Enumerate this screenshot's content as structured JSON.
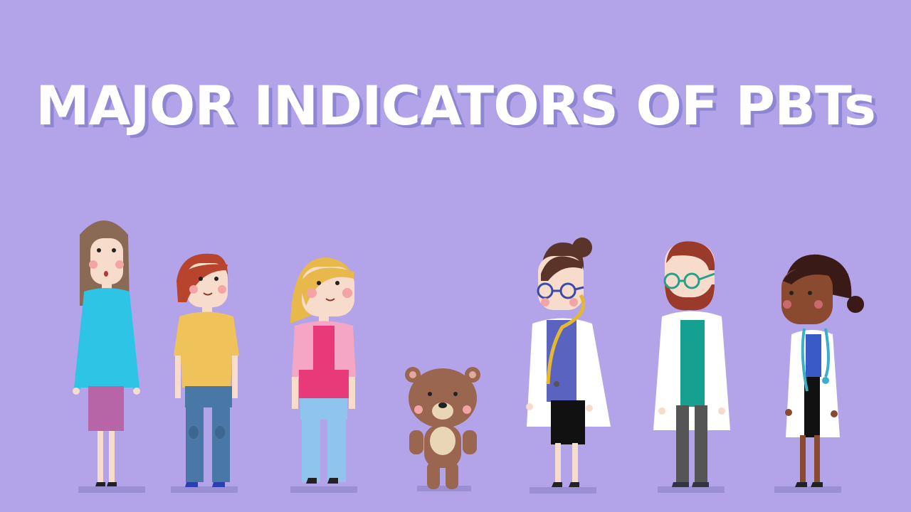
{
  "title": "MAJOR INDICATORS OF PBTs",
  "colors": {
    "background": "#b3a3e8",
    "title_text": "#ffffff",
    "title_shadow": "#8e86d2",
    "ground_shadow": "#9a8fd2"
  },
  "characters": [
    {
      "name": "woman-teal-sweater"
    },
    {
      "name": "boy-yellow-shirt"
    },
    {
      "name": "girl-pink-jacket"
    },
    {
      "name": "teddy-bear"
    },
    {
      "name": "doctor-woman-glasses"
    },
    {
      "name": "doctor-man-beard"
    },
    {
      "name": "doctor-woman-stethoscope"
    }
  ]
}
